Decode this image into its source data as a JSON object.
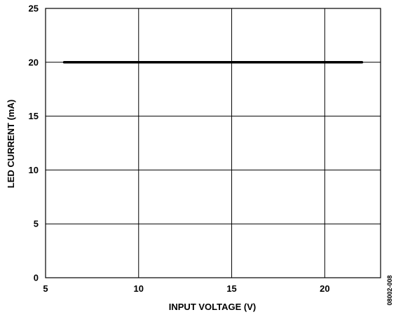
{
  "chart_data": {
    "type": "line",
    "xlabel": "INPUT VOLTAGE (V)",
    "ylabel": "LED CURRENT (mA)",
    "xlim": [
      5,
      23
    ],
    "ylim": [
      0,
      25
    ],
    "xticks": [
      5,
      10,
      15,
      20
    ],
    "yticks": [
      0,
      5,
      10,
      15,
      20,
      25
    ],
    "grid": true,
    "series": [
      {
        "x": [
          6,
          22
        ],
        "y": [
          20,
          20
        ],
        "color": "#000000"
      }
    ],
    "figure_id": "08002-008"
  }
}
